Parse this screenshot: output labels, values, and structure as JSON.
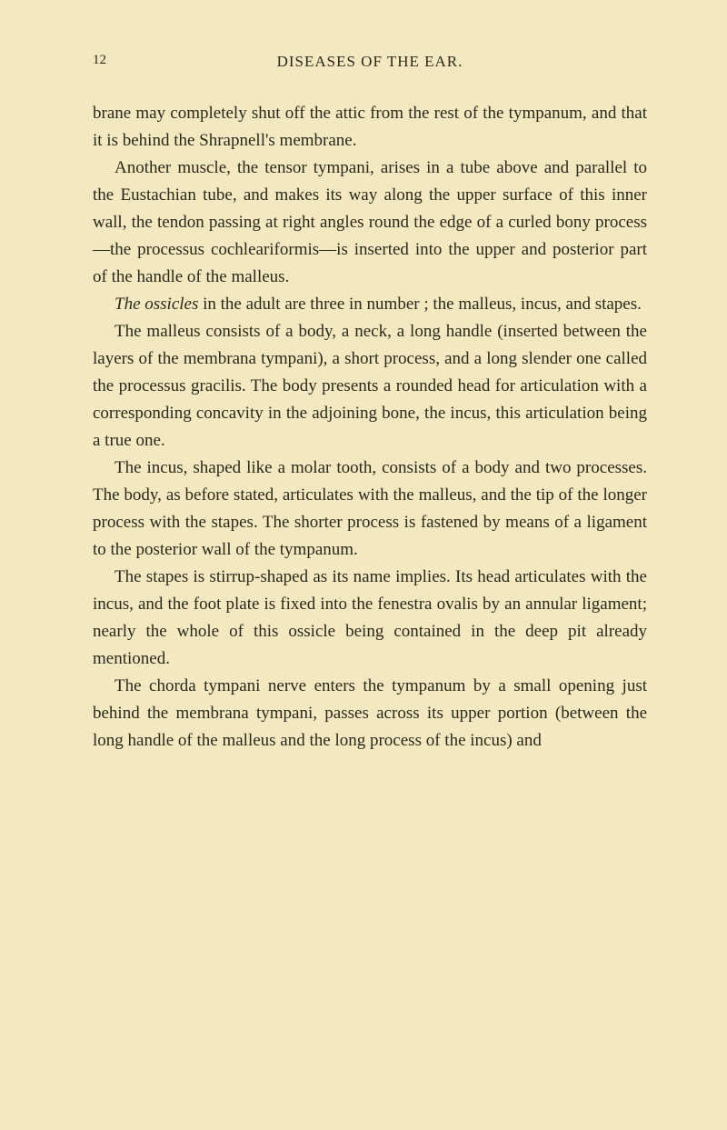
{
  "page": {
    "number": "12",
    "header": "DISEASES OF THE EAR.",
    "background_color": "#f3e8c0",
    "text_color": "#2a2a1a",
    "font_family": "Georgia, serif",
    "body_font_size": 19,
    "header_font_size": 17,
    "page_number_font_size": 15,
    "line_height": 1.58
  },
  "paragraphs": {
    "p1": "brane may completely shut off the attic from the rest of the tympanum, and that it is behind the Shrapnell's membrane.",
    "p2": "Another muscle, the tensor tympani, arises in a tube above and parallel to the Eustachian tube, and makes its way along the upper surface of this inner wall, the tendon passing at right angles round the edge of a curled bony process—the processus cochleariformis—is inserted into the upper and posterior part of the handle of the malleus.",
    "p3_italic": "The ossicles",
    "p3_rest": " in the adult are three in number ; the malleus, incus, and stapes.",
    "p4": "The malleus consists of a body, a neck, a long handle (inserted between the layers of the membrana tympani), a short process, and a long slender one called the processus gracilis. The body presents a rounded head for articulation with a corresponding concavity in the adjoining bone, the incus, this articulation being a true one.",
    "p5": "The incus, shaped like a molar tooth, consists of a body and two processes. The body, as before stated, articulates with the malleus, and the tip of the longer process with the stapes. The shorter process is fastened by means of a ligament to the posterior wall of the tympanum.",
    "p6": "The stapes is stirrup-shaped as its name implies. Its head articulates with the incus, and the foot plate is fixed into the fenestra ovalis by an annular ligament; nearly the whole of this ossicle being contained in the deep pit already mentioned.",
    "p7": "The chorda tympani nerve enters the tympanum by a small opening just behind the membrana tympani, passes across its upper portion (between the long handle of the malleus and the long process of the incus) and"
  }
}
